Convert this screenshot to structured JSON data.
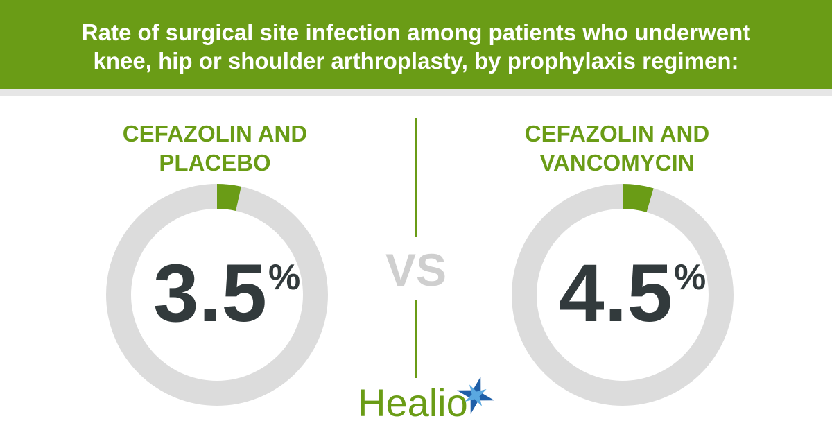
{
  "title": "Rate of surgical site infection among patients who underwent knee, hip or shoulder arthroplasty, by prophylaxis regimen:",
  "chart_data": [
    {
      "type": "donut",
      "title": "CEFAZOLIN AND PLACEBO",
      "values": [
        3.5
      ],
      "unit": "%",
      "color": "#6a9c16"
    },
    {
      "type": "donut",
      "title": "CEFAZOLIN AND VANCOMYCIN",
      "values": [
        4.5
      ],
      "unit": "%",
      "color": "#6a9c16"
    }
  ],
  "separator": "VS",
  "logo": "Healio"
}
